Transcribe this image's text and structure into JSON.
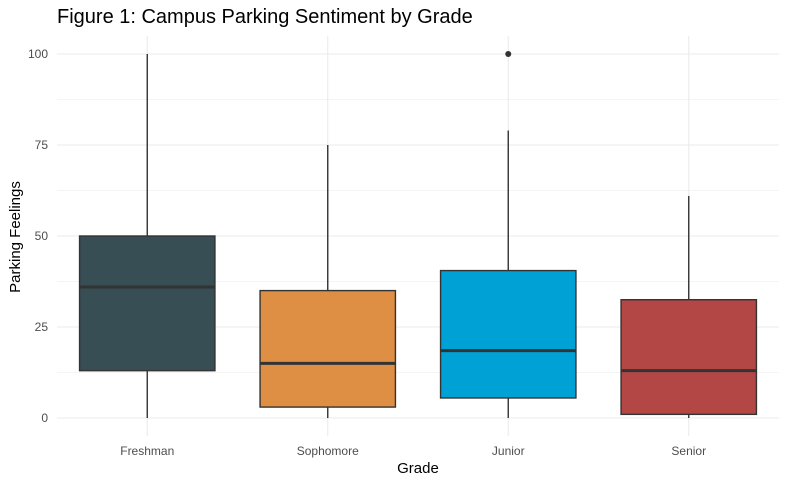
{
  "chart_data": {
    "type": "boxplot",
    "title": "Figure 1: Campus Parking Sentiment by Grade",
    "xlabel": "Grade",
    "ylabel": "Parking Feelings",
    "ylim": [
      0,
      100
    ],
    "yticks": [
      0,
      25,
      50,
      75,
      100
    ],
    "ytick_labels": [
      "0",
      "25",
      "50",
      "75",
      "100"
    ],
    "grid": true,
    "legend": "none",
    "categories": [
      "Freshman",
      "Sophomore",
      "Junior",
      "Senior"
    ],
    "boxes": [
      {
        "name": "Freshman",
        "min": 0,
        "q1": 13,
        "median": 36,
        "q3": 50,
        "max": 100,
        "outliers": [],
        "color": "#374E55"
      },
      {
        "name": "Sophomore",
        "min": 0,
        "q1": 3,
        "median": 15,
        "q3": 35,
        "max": 75,
        "outliers": [],
        "color": "#DF8F44"
      },
      {
        "name": "Junior",
        "min": 0,
        "q1": 5.5,
        "median": 18.5,
        "q3": 40.5,
        "max": 79,
        "outliers": [
          100
        ],
        "color": "#00A1D5"
      },
      {
        "name": "Senior",
        "min": 0,
        "q1": 1,
        "median": 13,
        "q3": 32.5,
        "max": 61,
        "outliers": [],
        "color": "#B24745"
      }
    ]
  }
}
